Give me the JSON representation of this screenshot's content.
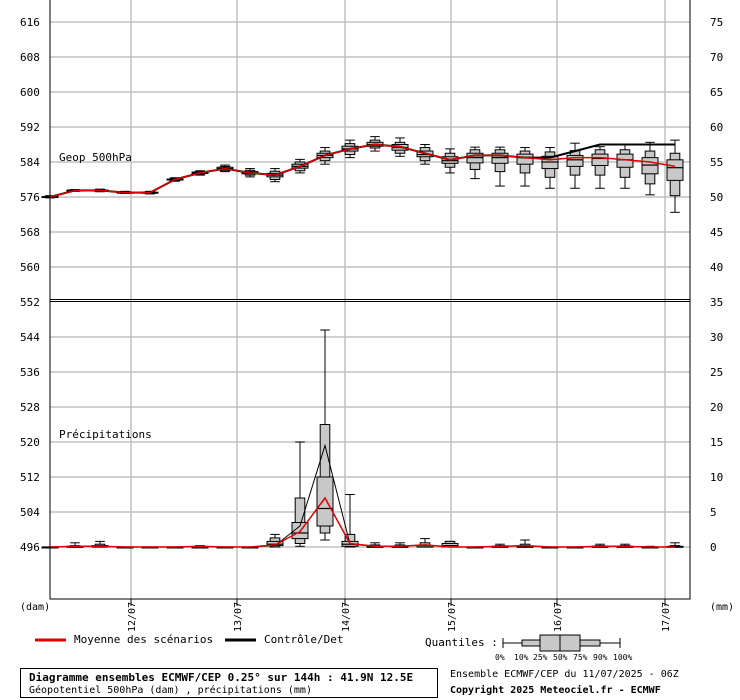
{
  "chart_data": {
    "type": "box",
    "geop_label": "Geop 500hPa",
    "precip_label": "Précipitations",
    "left_axis_unit": "(dam)",
    "right_axis_unit": "(mm)",
    "left_ticks_top": [
      616,
      608,
      600,
      592,
      584,
      576,
      568,
      560,
      552
    ],
    "left_ticks_bottom": [
      544,
      536,
      528,
      520,
      512,
      504,
      496
    ],
    "right_ticks_top": [
      75,
      70,
      65,
      60,
      55,
      50,
      45,
      40,
      35
    ],
    "right_ticks_bottom": [
      30,
      25,
      20,
      15,
      10,
      5,
      0
    ],
    "dates": [
      "12/07",
      "13/07",
      "14/07",
      "15/07",
      "16/07",
      "17/07"
    ],
    "geop_ylim": [
      552,
      620
    ],
    "precip_ylim": [
      -9,
      35
    ],
    "geop_control": [
      576,
      577.5,
      577.5,
      577,
      577,
      580,
      581.5,
      582.5,
      581.5,
      581,
      583,
      585.5,
      587,
      588,
      587.5,
      586,
      584.5,
      585.5,
      585.5,
      585,
      585,
      586.5,
      588,
      588,
      588,
      588
    ],
    "geop_mean": [
      576,
      577.5,
      577.5,
      577,
      577,
      580,
      581.5,
      582.5,
      581.5,
      581,
      583,
      585.5,
      587,
      588,
      587.5,
      586,
      584.5,
      585.5,
      585.5,
      585,
      584.5,
      585,
      585,
      584.5,
      584,
      583
    ],
    "geop_boxes": [
      {
        "min": 575.8,
        "q10": 575.9,
        "q25": 576,
        "q50": 576,
        "q75": 576.1,
        "q90": 576.2,
        "max": 576.3
      },
      {
        "min": 577.3,
        "q10": 577.4,
        "q25": 577.4,
        "q50": 577.5,
        "q75": 577.6,
        "q90": 577.6,
        "max": 577.7
      },
      {
        "min": 577.2,
        "q10": 577.3,
        "q25": 577.4,
        "q50": 577.5,
        "q75": 577.6,
        "q90": 577.7,
        "max": 577.8
      },
      {
        "min": 576.8,
        "q10": 576.9,
        "q25": 577,
        "q50": 577,
        "q75": 577.1,
        "q90": 577.2,
        "max": 577.3
      },
      {
        "min": 576.7,
        "q10": 576.8,
        "q25": 576.9,
        "q50": 577,
        "q75": 577.1,
        "q90": 577.2,
        "max": 577.3
      },
      {
        "min": 579.6,
        "q10": 579.7,
        "q25": 579.9,
        "q50": 580,
        "q75": 580.1,
        "q90": 580.3,
        "max": 580.4
      },
      {
        "min": 581,
        "q10": 581.2,
        "q25": 581.4,
        "q50": 581.5,
        "q75": 581.7,
        "q90": 581.8,
        "max": 582
      },
      {
        "min": 581.8,
        "q10": 582,
        "q25": 582.3,
        "q50": 582.5,
        "q75": 582.8,
        "q90": 583,
        "max": 583.3
      },
      {
        "min": 580.6,
        "q10": 581,
        "q25": 581.3,
        "q50": 581.5,
        "q75": 581.8,
        "q90": 582.1,
        "max": 582.5
      },
      {
        "min": 579.5,
        "q10": 580,
        "q25": 580.6,
        "q50": 581,
        "q75": 581.4,
        "q90": 581.9,
        "max": 582.5
      },
      {
        "min": 581.5,
        "q10": 582,
        "q25": 582.6,
        "q50": 583,
        "q75": 583.5,
        "q90": 584,
        "max": 584.6
      },
      {
        "min": 583.5,
        "q10": 584.3,
        "q25": 585,
        "q50": 585.5,
        "q75": 586,
        "q90": 586.5,
        "max": 587.3
      },
      {
        "min": 585,
        "q10": 585.7,
        "q25": 586.5,
        "q50": 587,
        "q75": 587.6,
        "q90": 588.2,
        "max": 589
      },
      {
        "min": 586.5,
        "q10": 587.2,
        "q25": 587.6,
        "q50": 588,
        "q75": 588.5,
        "q90": 589,
        "max": 589.8
      },
      {
        "min": 585.3,
        "q10": 586,
        "q25": 586.7,
        "q50": 587.3,
        "q75": 588,
        "q90": 588.5,
        "max": 589.5
      },
      {
        "min": 583.5,
        "q10": 584.3,
        "q25": 585.2,
        "q50": 585.7,
        "q75": 586.5,
        "q90": 587.3,
        "max": 588
      },
      {
        "min": 581.5,
        "q10": 582.8,
        "q25": 583.7,
        "q50": 584.3,
        "q75": 585.2,
        "q90": 586,
        "max": 587
      },
      {
        "min": 580.2,
        "q10": 582.3,
        "q25": 583.8,
        "q50": 585,
        "q75": 586,
        "q90": 586.8,
        "max": 587.4
      },
      {
        "min": 578.5,
        "q10": 581.8,
        "q25": 583.7,
        "q50": 585,
        "q75": 586,
        "q90": 586.8,
        "max": 587.4
      },
      {
        "min": 578.5,
        "q10": 581.5,
        "q25": 583.5,
        "q50": 585,
        "q75": 585.8,
        "q90": 586.5,
        "max": 587.3
      },
      {
        "min": 578,
        "q10": 580.5,
        "q25": 582.5,
        "q50": 584,
        "q75": 585.3,
        "q90": 586.3,
        "max": 587.3
      },
      {
        "min": 578,
        "q10": 581,
        "q25": 583,
        "q50": 584.5,
        "q75": 585.5,
        "q90": 586.6,
        "max": 588.3
      },
      {
        "min": 578,
        "q10": 581,
        "q25": 583.2,
        "q50": 584.8,
        "q75": 585.8,
        "q90": 586.8,
        "max": 587.5
      },
      {
        "min": 578,
        "q10": 580.5,
        "q25": 582.8,
        "q50": 584.5,
        "q75": 585.8,
        "q90": 586.8,
        "max": 588
      },
      {
        "min": 576.5,
        "q10": 579,
        "q25": 581.3,
        "q50": 583.3,
        "q75": 585,
        "q90": 586.5,
        "max": 588.5
      },
      {
        "min": 572.5,
        "q10": 576.3,
        "q25": 579.8,
        "q50": 582.7,
        "q75": 584.5,
        "q90": 586,
        "max": 589
      }
    ],
    "precip_mean": [
      0,
      0.1,
      0.1,
      0,
      0,
      0,
      0.1,
      0,
      0,
      0.3,
      2.2,
      7,
      0.5,
      0.1,
      0.1,
      0.3,
      0,
      0,
      0.1,
      0.2,
      0,
      0,
      0.1,
      0.1,
      0,
      0
    ],
    "precip_control": [
      0,
      0.1,
      0.1,
      0,
      0,
      0,
      0.1,
      0,
      0,
      0.2,
      3,
      14.5,
      0.4,
      0.1,
      0.1,
      0.3,
      0,
      0,
      0.1,
      0.2,
      0,
      0,
      0.1,
      0.1,
      0,
      0
    ],
    "precip_boxes": [
      {
        "min": 0,
        "q10": 0,
        "q25": 0,
        "q50": 0,
        "q75": 0,
        "q90": 0,
        "max": 0
      },
      {
        "min": 0,
        "q10": 0,
        "q25": 0,
        "q50": 0,
        "q75": 0.1,
        "q90": 0.2,
        "max": 0.6
      },
      {
        "min": 0,
        "q10": 0,
        "q25": 0,
        "q50": 0,
        "q75": 0.2,
        "q90": 0.4,
        "max": 0.8
      },
      {
        "min": 0,
        "q10": 0,
        "q25": 0,
        "q50": 0,
        "q75": 0,
        "q90": 0,
        "max": 0
      },
      {
        "min": 0,
        "q10": 0,
        "q25": 0,
        "q50": 0,
        "q75": 0,
        "q90": 0,
        "max": 0
      },
      {
        "min": 0,
        "q10": 0,
        "q25": 0,
        "q50": 0,
        "q75": 0,
        "q90": 0,
        "max": 0
      },
      {
        "min": 0,
        "q10": 0,
        "q25": 0,
        "q50": 0,
        "q75": 0,
        "q90": 0,
        "max": 0.2
      },
      {
        "min": 0,
        "q10": 0,
        "q25": 0,
        "q50": 0,
        "q75": 0,
        "q90": 0,
        "max": 0
      },
      {
        "min": 0,
        "q10": 0,
        "q25": 0,
        "q50": 0,
        "q75": 0,
        "q90": 0,
        "max": 0
      },
      {
        "min": 0,
        "q10": 0,
        "q25": 0.2,
        "q50": 0.4,
        "q75": 0.8,
        "q90": 1.3,
        "max": 1.8
      },
      {
        "min": 0.1,
        "q10": 0.5,
        "q25": 1.2,
        "q50": 2,
        "q75": 3.5,
        "q90": 7,
        "max": 15
      },
      {
        "min": 1,
        "q10": 2,
        "q25": 3,
        "q50": 5.5,
        "q75": 10,
        "q90": 17.5,
        "max": 31
      },
      {
        "min": 0,
        "q10": 0,
        "q25": 0.1,
        "q50": 0.4,
        "q75": 0.8,
        "q90": 1.8,
        "max": 7.5
      },
      {
        "min": 0,
        "q10": 0,
        "q25": 0,
        "q50": 0,
        "q75": 0.1,
        "q90": 0.3,
        "max": 0.6
      },
      {
        "min": 0,
        "q10": 0,
        "q25": 0,
        "q50": 0,
        "q75": 0.1,
        "q90": 0.3,
        "max": 0.6
      },
      {
        "min": 0,
        "q10": 0,
        "q25": 0,
        "q50": 0,
        "q75": 0.2,
        "q90": 0.6,
        "max": 1.2
      },
      {
        "min": 0,
        "q10": 0,
        "q25": 0,
        "q50": 0.2,
        "q75": 0.5,
        "q90": 0.8,
        "max": 0.8
      },
      {
        "min": 0,
        "q10": 0,
        "q25": 0,
        "q50": 0,
        "q75": 0,
        "q90": 0,
        "max": 0
      },
      {
        "min": 0,
        "q10": 0,
        "q25": 0,
        "q50": 0,
        "q75": 0.1,
        "q90": 0.2,
        "max": 0.4
      },
      {
        "min": 0,
        "q10": 0,
        "q25": 0,
        "q50": 0,
        "q75": 0.1,
        "q90": 0.4,
        "max": 1
      },
      {
        "min": 0,
        "q10": 0,
        "q25": 0,
        "q50": 0,
        "q75": 0,
        "q90": 0,
        "max": 0
      },
      {
        "min": 0,
        "q10": 0,
        "q25": 0,
        "q50": 0,
        "q75": 0,
        "q90": 0,
        "max": 0
      },
      {
        "min": 0,
        "q10": 0,
        "q25": 0,
        "q50": 0,
        "q75": 0.1,
        "q90": 0.2,
        "max": 0.4
      },
      {
        "min": 0,
        "q10": 0,
        "q25": 0,
        "q50": 0,
        "q75": 0.1,
        "q90": 0.2,
        "max": 0.4
      },
      {
        "min": 0,
        "q10": 0,
        "q25": 0,
        "q50": 0,
        "q75": 0,
        "q90": 0,
        "max": 0.1
      },
      {
        "min": 0,
        "q10": 0,
        "q25": 0,
        "q50": 0,
        "q75": 0.1,
        "q90": 0.2,
        "max": 0.6
      }
    ],
    "colors": {
      "mean": "#e00000",
      "control": "#000000",
      "box_fill": "#c8c8c8",
      "grid": "#c0c0c0"
    }
  },
  "legend": {
    "mean_label": "Moyenne des scénarios",
    "control_label": "Contrôle/Det",
    "quantiles_label": "Quantiles :",
    "quantile_ticks": [
      "0%",
      "10%",
      "25%",
      "50%",
      "75%",
      "90%",
      "100%"
    ]
  },
  "footer": {
    "title": "Diagramme ensembles ECMWF/CEP 0.25° sur 144h : 41.9N 12.5E",
    "subtitle": "Géopotentiel 500hPa (dam) , précipitations (mm)",
    "run_info": "Ensemble ECMWF/CEP du 11/07/2025 - 06Z",
    "copyright": "Copyright 2025 Meteociel.fr - ECMWF"
  }
}
